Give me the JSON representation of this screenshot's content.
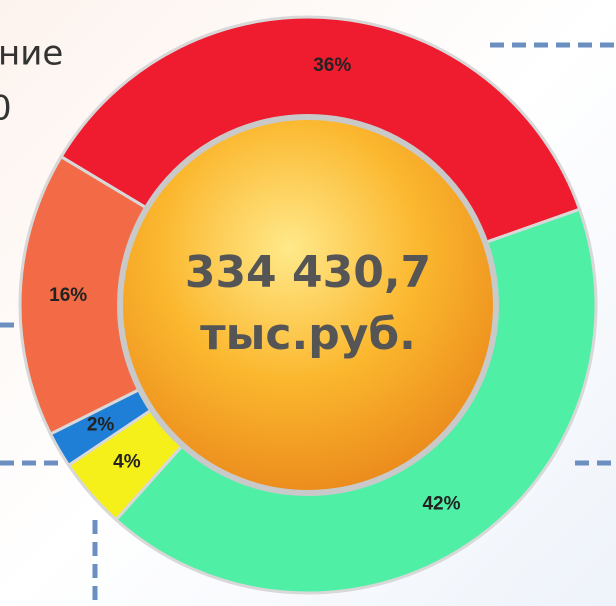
{
  "background_text": [
    "ние",
    "0"
  ],
  "chart_data": {
    "type": "donut",
    "values": [
      36,
      42,
      4,
      2,
      16
    ],
    "value_labels": [
      "36%",
      "42%",
      "4%",
      "2%",
      "16%"
    ],
    "colors": [
      "#ee1c2e",
      "#4ff0a6",
      "#f5f01a",
      "#1f7fd6",
      "#f26a46"
    ],
    "center_text": [
      "334 430,7",
      "тыс.руб."
    ]
  }
}
